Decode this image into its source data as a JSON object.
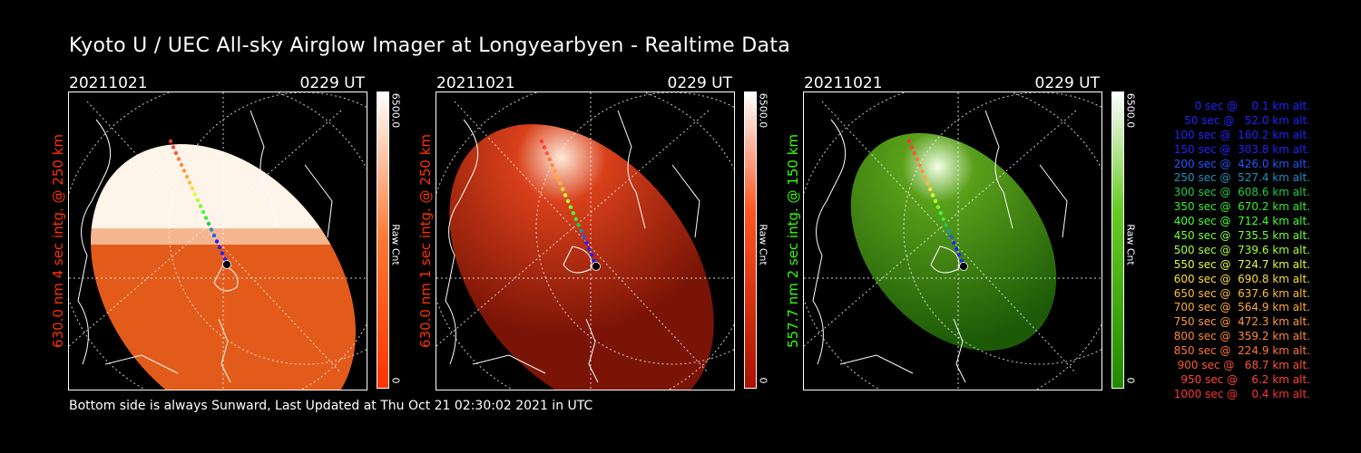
{
  "title": "Kyoto U / UEC All-sky Airglow Imager at Longyearbyen - Realtime Data",
  "footer": "Bottom side is always Sunward, Last Updated at Thu Oct 21 02:30:02 2021 in UTC",
  "panels": [
    {
      "date": "20211021",
      "time": "0229 UT",
      "side_label": "630.0 nm 4 sec intg. @ 250 km",
      "side_color": "#ff3300",
      "cbar_max": "6500.0",
      "cbar_unit": "Raw Cnt",
      "cbar_min": "0",
      "cbar_top": "#ffffff",
      "cbar_bottom": "#ff3300",
      "saturation": 0.82
    },
    {
      "date": "20211021",
      "time": "0229 UT",
      "side_label": "630.0 nm 1 sec intg. @ 250 km",
      "side_color": "#ff3300",
      "cbar_max": "6500.0",
      "cbar_unit": "Raw Cnt",
      "cbar_min": "0",
      "cbar_top": "#ffffff",
      "cbar_bottom": "#cc2200",
      "saturation": 0.3
    },
    {
      "date": "20211021",
      "time": "0229 UT",
      "side_label": "557.7 nm 2 sec intg. @ 150 km",
      "side_color": "#33ff00",
      "cbar_max": "6500.0",
      "cbar_unit": "Raw Cnt",
      "cbar_min": "0",
      "cbar_top": "#ffffff",
      "cbar_bottom": "#33aa00",
      "saturation": 0.25
    }
  ],
  "legend": [
    {
      "text": "0 sec @    0.1 km alt.",
      "color": "#2222ff"
    },
    {
      "text": "50 sec @   52.0 km alt.",
      "color": "#2222ff"
    },
    {
      "text": "100 sec @  160.2 km alt.",
      "color": "#2222ff"
    },
    {
      "text": "150 sec @  303.8 km alt.",
      "color": "#2222ff"
    },
    {
      "text": "200 sec @  426.0 km alt.",
      "color": "#2255ff"
    },
    {
      "text": "250 sec @  527.4 km alt.",
      "color": "#1e90c0"
    },
    {
      "text": "300 sec @  608.6 km alt.",
      "color": "#22cc44"
    },
    {
      "text": "350 sec @  670.2 km alt.",
      "color": "#33ee33"
    },
    {
      "text": "400 sec @  712.4 km alt.",
      "color": "#44ff33"
    },
    {
      "text": "450 sec @  735.5 km alt.",
      "color": "#77ff33"
    },
    {
      "text": "500 sec @  739.6 km alt.",
      "color": "#aaff33"
    },
    {
      "text": "550 sec @  724.7 km alt.",
      "color": "#ddff33"
    },
    {
      "text": "600 sec @  690.8 km alt.",
      "color": "#ffdd33"
    },
    {
      "text": "650 sec @  637.6 km alt.",
      "color": "#ffbb33"
    },
    {
      "text": "700 sec @  564.9 km alt.",
      "color": "#ffaa33"
    },
    {
      "text": "750 sec @  472.3 km alt.",
      "color": "#ff9933"
    },
    {
      "text": "800 sec @  359.2 km alt.",
      "color": "#ff8833"
    },
    {
      "text": "850 sec @  224.9 km alt.",
      "color": "#ff7733"
    },
    {
      "text": "900 sec @   68.7 km alt.",
      "color": "#ff5533"
    },
    {
      "text": "950 sec @    6.2 km alt.",
      "color": "#ff4433"
    },
    {
      "text": "1000 sec @    0.4 km alt.",
      "color": "#ff3333"
    }
  ]
}
